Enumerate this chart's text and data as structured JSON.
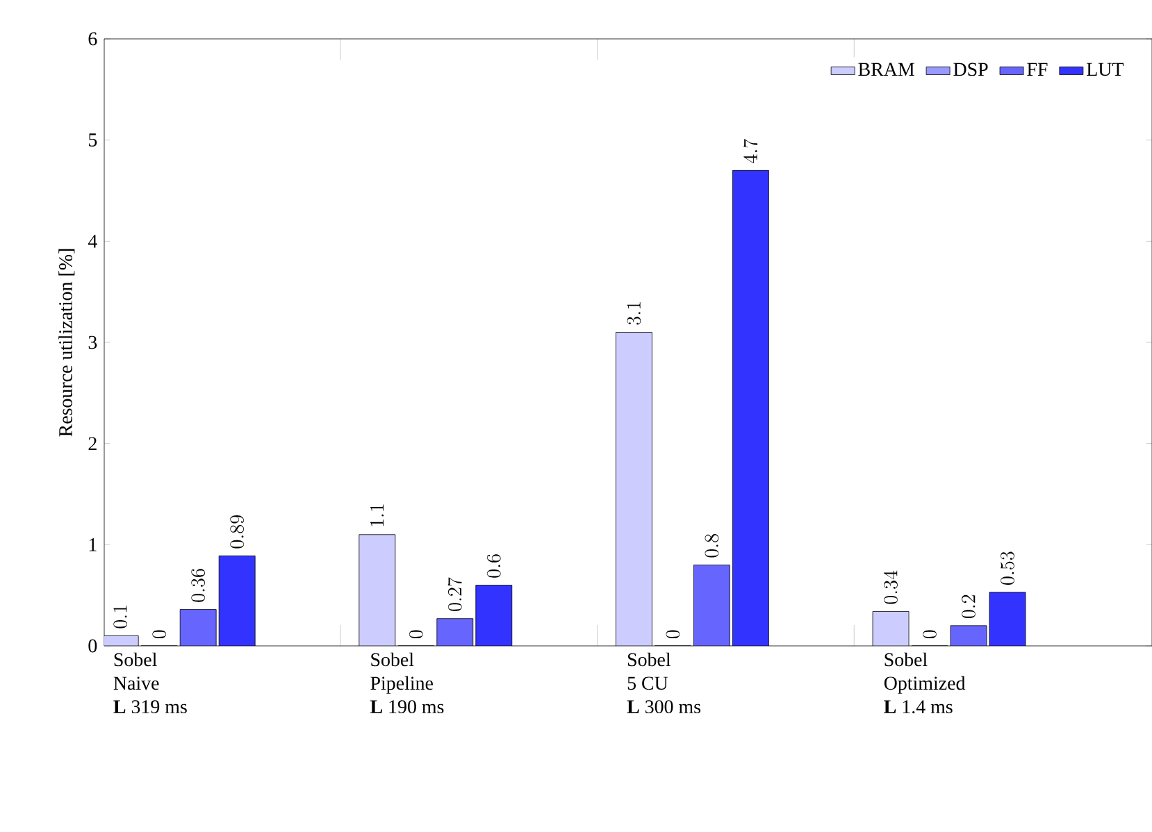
{
  "chart_data": {
    "type": "bar",
    "categories": [
      "Sobel\nNaive\n**L** 319 ms",
      "Sobel\nPipeline\n**L** 190 ms",
      "Sobel\n5 CU\n**L** 300 ms",
      "Sobel\nOptimized\n**L** 1.4 ms"
    ],
    "ylabel": "Resource utilization [%]",
    "series": [
      {
        "name": "BRAM",
        "color": "#ccccff",
        "values": [
          0.1,
          1.1,
          3.1,
          0.34
        ]
      },
      {
        "name": "DSP",
        "color": "#9999ff",
        "values": [
          0,
          0,
          0,
          0
        ]
      },
      {
        "name": "FF",
        "color": "#6666ff",
        "values": [
          0.36,
          0.27,
          0.8,
          0.2
        ]
      },
      {
        "name": "LUT",
        "color": "#3333ff",
        "values": [
          0.89,
          0.6,
          4.7,
          0.53
        ]
      }
    ],
    "ylim": [
      0,
      6
    ],
    "yticks": [
      0,
      1,
      2,
      3,
      4,
      5,
      6
    ],
    "data_labels": true,
    "legend": "top right",
    "grid": false
  }
}
